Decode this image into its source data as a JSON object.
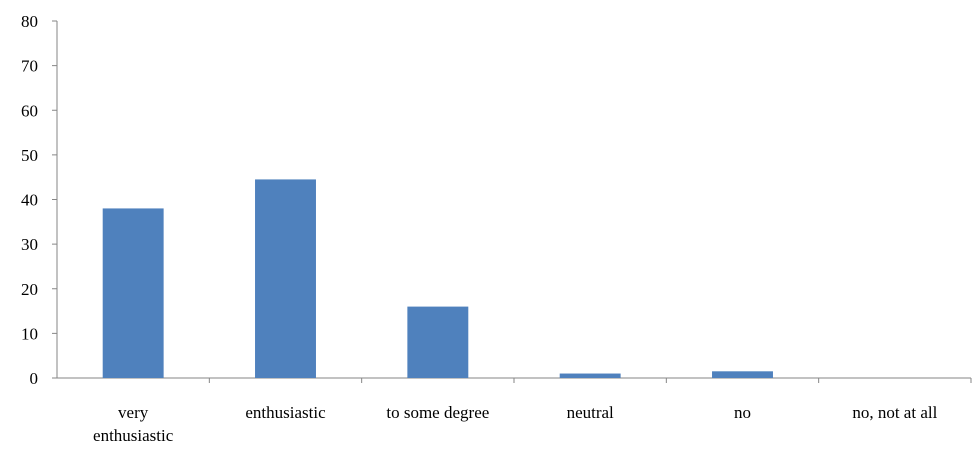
{
  "chart_data": {
    "type": "bar",
    "title": "",
    "xlabel": "",
    "ylabel": "",
    "categories": [
      "very enthusiastic",
      "enthusiastic",
      "to some degree",
      "neutral",
      "no",
      "no, not at all"
    ],
    "category_lines": [
      [
        "very",
        "enthusiastic"
      ],
      [
        "enthusiastic"
      ],
      [
        "to some degree"
      ],
      [
        "neutral"
      ],
      [
        "no"
      ],
      [
        "no, not at all"
      ]
    ],
    "values": [
      38,
      44.5,
      16,
      1,
      1.5,
      0
    ],
    "ylim": [
      0,
      80
    ],
    "yticks": [
      0,
      10,
      20,
      30,
      40,
      50,
      60,
      70,
      80
    ],
    "grid": false,
    "legend": "none",
    "colors": {
      "bar": "#4F81BD",
      "axis": "#868686",
      "text": "#000000"
    }
  }
}
